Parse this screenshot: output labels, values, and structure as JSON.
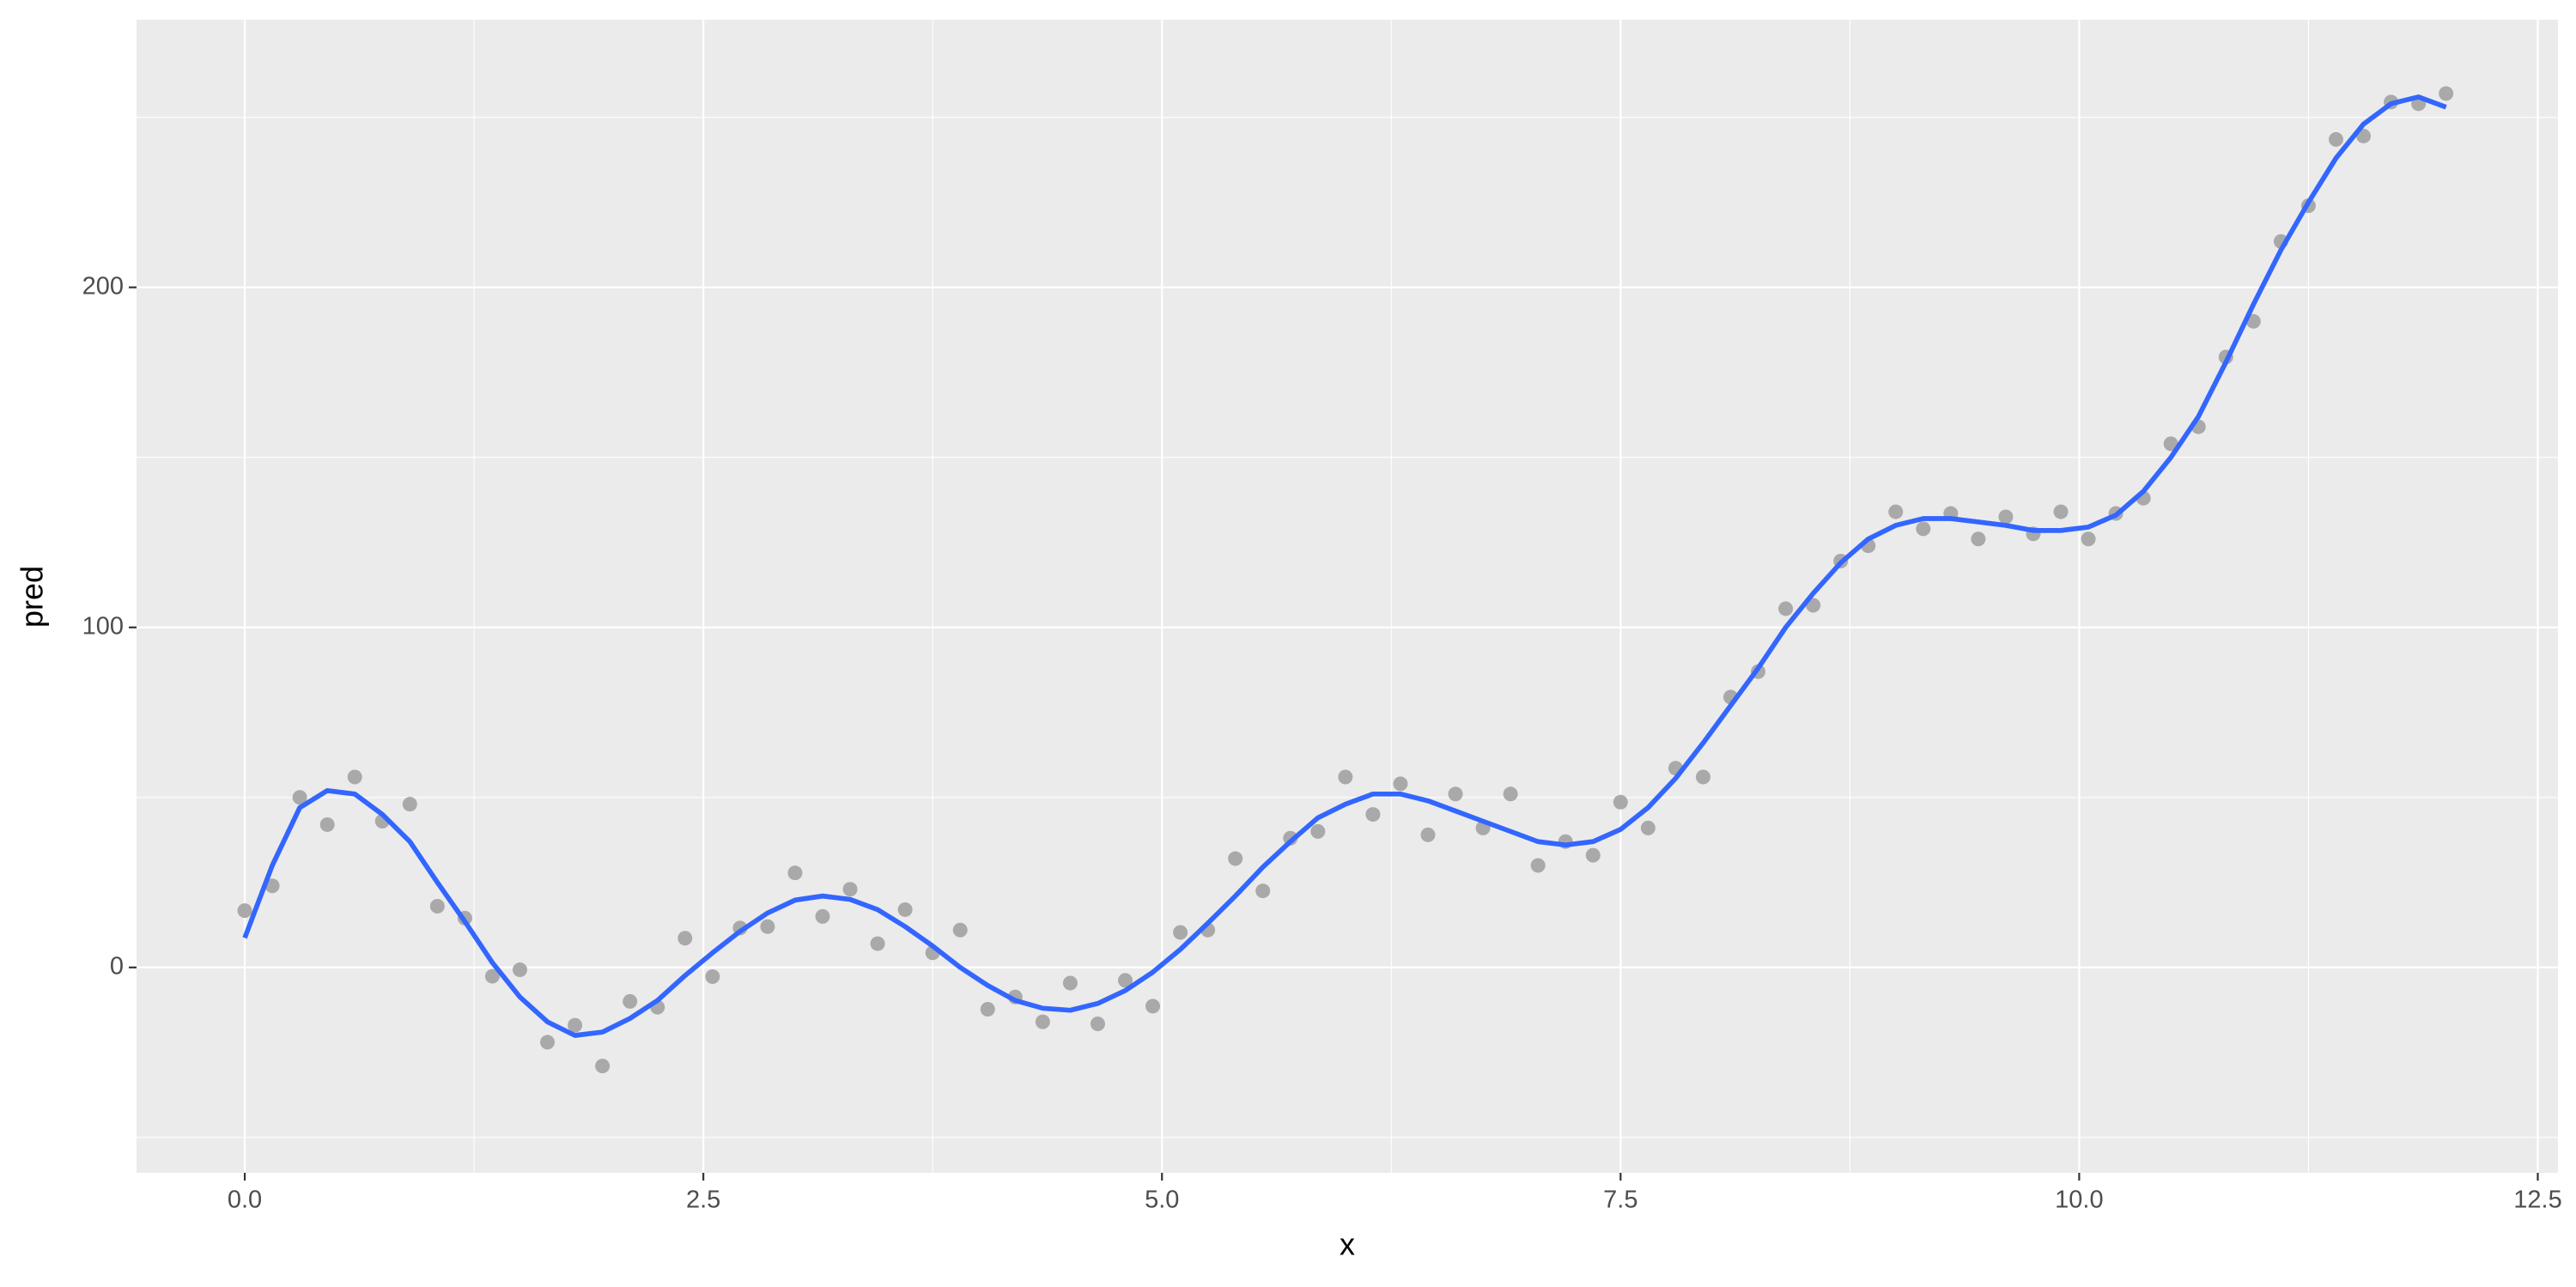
{
  "chart_data": {
    "type": "scatter",
    "x_label": "x",
    "y_label": "pred",
    "xlim": [
      -0.59,
      12.61
    ],
    "ylim": [
      -60.4,
      278.7
    ],
    "xticks": [
      {
        "value": 0,
        "label": "0.0"
      },
      2.5,
      {
        "value": 5,
        "label": "5.0"
      },
      7.5,
      {
        "value": 10,
        "label": "10.0"
      },
      12.5
    ],
    "yticks": [
      0,
      100,
      200
    ],
    "xminor": [
      1.25,
      3.75,
      6.25,
      8.75,
      11.25
    ],
    "yminor": [
      -50,
      50,
      150,
      250
    ],
    "grid": true,
    "background": "#ebebeb",
    "series": [
      {
        "type": "scatter",
        "color": "#a9a9a9",
        "x": [
          0,
          0.15,
          0.3,
          0.45,
          0.6,
          0.75,
          0.9,
          1.05,
          1.2,
          1.35,
          1.5,
          1.65,
          1.8,
          1.95,
          2.1,
          2.25,
          2.4,
          2.55,
          2.7,
          2.85,
          3,
          3.15,
          3.3,
          3.45,
          3.6,
          3.75,
          3.9,
          4.05,
          4.2,
          4.35,
          4.5,
          4.65,
          4.8,
          4.95,
          5.1,
          5.25,
          5.4,
          5.55,
          5.7,
          5.85,
          6,
          6.15,
          6.3,
          6.45,
          6.6,
          6.75,
          6.9,
          7.05,
          7.2,
          7.35,
          7.5,
          7.65,
          7.8,
          7.95,
          8.1,
          8.25,
          8.4,
          8.55,
          8.7,
          8.85,
          9,
          9.15,
          9.3,
          9.45,
          9.6,
          9.75,
          9.9,
          10.05,
          10.2,
          10.35,
          10.5,
          10.65,
          10.8,
          10.95,
          11.1,
          11.25,
          11.4,
          11.55,
          11.7,
          11.85,
          12
        ],
        "values": [
          16.7,
          24,
          50,
          42,
          56,
          43,
          48,
          18,
          14.5,
          -2.6,
          -0.7,
          -22,
          -17,
          -29,
          -10,
          -11.7,
          8.6,
          -2.7,
          11.6,
          12,
          27.8,
          15,
          23,
          7,
          17,
          4.3,
          11,
          -12.3,
          -8.7,
          -16,
          -4.6,
          -16.6,
          -3.8,
          -11.4,
          10.3,
          11,
          32,
          22.5,
          38,
          40,
          56,
          45,
          54,
          39,
          51,
          41,
          51,
          30,
          37,
          33,
          48.6,
          41,
          58.6,
          56,
          79.5,
          87,
          105.5,
          106.5,
          119.5,
          124,
          134,
          129,
          133.5,
          126,
          132.5,
          127.5,
          134,
          126,
          133.5,
          138,
          154,
          159,
          179.5,
          190,
          213.5,
          224,
          243.5,
          244.5,
          254.5,
          254,
          257
        ]
      },
      {
        "type": "line",
        "color": "#3366ff",
        "x": [
          0,
          0.15,
          0.3,
          0.45,
          0.6,
          0.75,
          0.9,
          1.05,
          1.2,
          1.35,
          1.5,
          1.65,
          1.8,
          1.95,
          2.1,
          2.25,
          2.4,
          2.55,
          2.7,
          2.85,
          3,
          3.15,
          3.3,
          3.45,
          3.6,
          3.75,
          3.9,
          4.05,
          4.2,
          4.35,
          4.5,
          4.65,
          4.8,
          4.95,
          5.1,
          5.25,
          5.4,
          5.55,
          5.7,
          5.85,
          6,
          6.15,
          6.3,
          6.45,
          6.6,
          6.75,
          6.9,
          7.05,
          7.2,
          7.35,
          7.5,
          7.65,
          7.8,
          7.95,
          8.1,
          8.25,
          8.4,
          8.55,
          8.7,
          8.85,
          9,
          9.15,
          9.3,
          9.45,
          9.6,
          9.75,
          9.9,
          10.05,
          10.2,
          10.35,
          10.5,
          10.65,
          10.8,
          10.95,
          11.1,
          11.25,
          11.4,
          11.55,
          11.7,
          11.85,
          12
        ],
        "values": [
          8.7,
          30,
          47,
          52,
          51,
          45,
          37,
          25,
          13.5,
          1.4,
          -8.7,
          -16,
          -20,
          -19,
          -15,
          -9.7,
          -2.4,
          4.3,
          10.6,
          16,
          19.8,
          21,
          20,
          17,
          12,
          6.3,
          0,
          -5.3,
          -9.7,
          -12,
          -12.6,
          -10.6,
          -6.8,
          -1.4,
          5.3,
          13,
          21,
          29.5,
          37,
          44,
          48,
          51,
          51,
          49,
          46,
          43,
          40,
          37,
          36,
          37,
          40.6,
          47,
          55.6,
          66,
          77,
          88,
          100,
          110,
          119,
          126,
          130,
          132,
          132,
          131,
          130,
          128.5,
          128.5,
          129.5,
          133,
          140,
          150,
          162,
          178,
          195,
          211,
          225,
          238,
          248,
          254,
          256,
          253
        ]
      }
    ]
  }
}
